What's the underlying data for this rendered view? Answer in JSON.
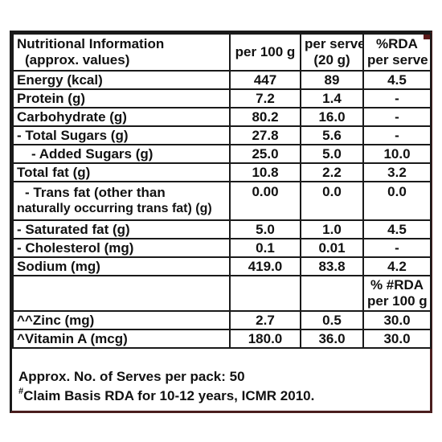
{
  "header": {
    "nutrient_line1": "Nutritional Information",
    "nutrient_line2": "(approx. values)",
    "per100": "per 100 g",
    "serve_line1": "per serve",
    "serve_line2": "(20 g)",
    "rda_line1": "%RDA",
    "rda_line2": "per serve"
  },
  "rows": [
    {
      "name": "Energy (kcal)",
      "per100": "447",
      "serve": "89",
      "rda": "4.5"
    },
    {
      "name": "Protein (g)",
      "per100": "7.2",
      "serve": "1.4",
      "rda": "-"
    },
    {
      "name": "Carbohydrate (g)",
      "per100": "80.2",
      "serve": "16.0",
      "rda": "-"
    },
    {
      "name": "- Total Sugars (g)",
      "per100": "27.8",
      "serve": "5.6",
      "rda": "-"
    },
    {
      "name": "- Added Sugars (g)",
      "per100": "25.0",
      "serve": "5.0",
      "rda": "10.0"
    },
    {
      "name": "Total fat (g)",
      "per100": "10.8",
      "serve": "2.2",
      "rda": "3.2"
    },
    {
      "name_line1": "- Trans fat (other than",
      "name_line2": "naturally occurring trans fat) (g)",
      "per100": "0.00",
      "serve": "0.0",
      "rda": "0.0"
    },
    {
      "name": "- Saturated fat (g)",
      "per100": "5.0",
      "serve": "1.0",
      "rda": "4.5"
    },
    {
      "name": "- Cholesterol (mg)",
      "per100": "0.1",
      "serve": "0.01",
      "rda": "-"
    },
    {
      "name": "Sodium (mg)",
      "per100": "419.0",
      "serve": "83.8",
      "rda": "4.2"
    }
  ],
  "subheader": {
    "rda100_line1": "% #RDA",
    "rda100_line2": "per 100 g"
  },
  "micro_rows": [
    {
      "name": "^^Zinc (mg)",
      "per100": "2.7",
      "serve": "0.5",
      "rda": "30.0"
    },
    {
      "name": "^Vitamin A (mcg)",
      "per100": "180.0",
      "serve": "36.0",
      "rda": "30.0"
    }
  ],
  "footer": {
    "serves_text": "Approx. No. of Serves per pack: 50",
    "claim_mark": "#",
    "claim_text": "Claim Basis RDA for 10-12 years, ICMR 2010."
  },
  "colors": {
    "border": "#1a1a1a",
    "frame_accent": "#4a1e1e",
    "text": "#111111",
    "background": "#ffffff"
  }
}
